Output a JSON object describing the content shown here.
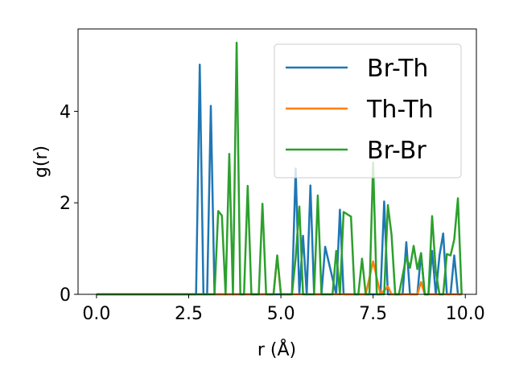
{
  "chart_data": {
    "type": "line",
    "title": "",
    "xlabel": "r (Å)",
    "ylabel": "g(r)",
    "xlim": [
      -0.5,
      10.3
    ],
    "ylim": [
      0,
      5.8
    ],
    "x_ticks": [
      0.0,
      2.5,
      5.0,
      7.5,
      10.0
    ],
    "x_tick_labels": [
      "0.0",
      "2.5",
      "5.0",
      "7.5",
      "10.0"
    ],
    "y_ticks": [
      0,
      2,
      4
    ],
    "y_tick_labels": [
      "0",
      "2",
      "4"
    ],
    "grid": false,
    "legend_position": "top-right",
    "series": [
      {
        "name": "Br-Th",
        "color": "#1f77b4",
        "x": [
          0,
          2.7,
          2.8,
          2.9,
          3.0,
          3.1,
          3.2,
          5.3,
          5.4,
          5.5,
          5.6,
          5.7,
          5.8,
          5.9,
          6.1,
          6.2,
          6.5,
          6.6,
          6.7,
          7.7,
          7.8,
          7.9,
          8.3,
          8.4,
          8.5,
          8.7,
          8.8,
          8.9,
          9.0,
          9.1,
          9.2,
          9.3,
          9.4,
          9.5,
          9.6,
          9.7,
          9.8,
          9.9
        ],
        "y": [
          0,
          0,
          5.02,
          0,
          0,
          4.12,
          0,
          0,
          2.75,
          0,
          1.28,
          0,
          2.38,
          0,
          0,
          1.04,
          0,
          1.85,
          0,
          0,
          2.03,
          0,
          0,
          1.14,
          0,
          0,
          0.9,
          0,
          0,
          0.95,
          0,
          0.85,
          1.33,
          0,
          0,
          0.85,
          0,
          0
        ]
      },
      {
        "name": "Th-Th",
        "color": "#ff7f0e",
        "x": [
          0,
          4.8,
          4.9,
          5.0,
          7.3,
          7.5,
          7.7,
          7.9,
          8.0,
          8.7,
          8.8,
          8.9,
          9.9
        ],
        "y": [
          0,
          0,
          0.82,
          0,
          0,
          0.72,
          0,
          0.17,
          0,
          0,
          0.27,
          0,
          0
        ]
      },
      {
        "name": "Br-Br",
        "color": "#2ca02c",
        "x": [
          0,
          3.2,
          3.3,
          3.4,
          3.5,
          3.6,
          3.7,
          3.8,
          3.9,
          4.0,
          4.1,
          4.2,
          4.3,
          4.4,
          4.5,
          4.6,
          4.7,
          4.8,
          4.9,
          5.0,
          5.2,
          5.3,
          5.4,
          5.5,
          5.6,
          5.7,
          5.8,
          5.9,
          6.0,
          6.1,
          6.2,
          6.3,
          6.4,
          6.5,
          6.6,
          6.7,
          6.9,
          7.0,
          7.1,
          7.2,
          7.3,
          7.4,
          7.5,
          7.6,
          7.7,
          7.8,
          7.9,
          8.0,
          8.1,
          8.2,
          8.4,
          8.5,
          8.6,
          8.7,
          8.8,
          8.9,
          9.0,
          9.1,
          9.2,
          9.3,
          9.4,
          9.5,
          9.6,
          9.7,
          9.8,
          9.9
        ],
        "y": [
          0,
          0,
          1.82,
          1.72,
          0,
          3.07,
          0,
          5.5,
          0,
          0,
          2.37,
          0,
          0,
          0,
          1.98,
          0,
          0,
          0,
          0.85,
          0,
          0,
          0,
          0.8,
          1.92,
          0,
          0,
          0,
          0,
          2.16,
          0,
          0,
          0,
          0,
          0.95,
          0,
          1.8,
          1.7,
          0,
          0,
          0.78,
          0,
          0,
          2.88,
          0,
          0,
          0,
          1.95,
          1.3,
          0,
          0,
          0.82,
          0.58,
          1.06,
          0.55,
          0.9,
          0,
          0,
          1.71,
          0.5,
          0,
          0,
          0.88,
          0.85,
          1.2,
          2.1,
          0
        ]
      }
    ]
  }
}
